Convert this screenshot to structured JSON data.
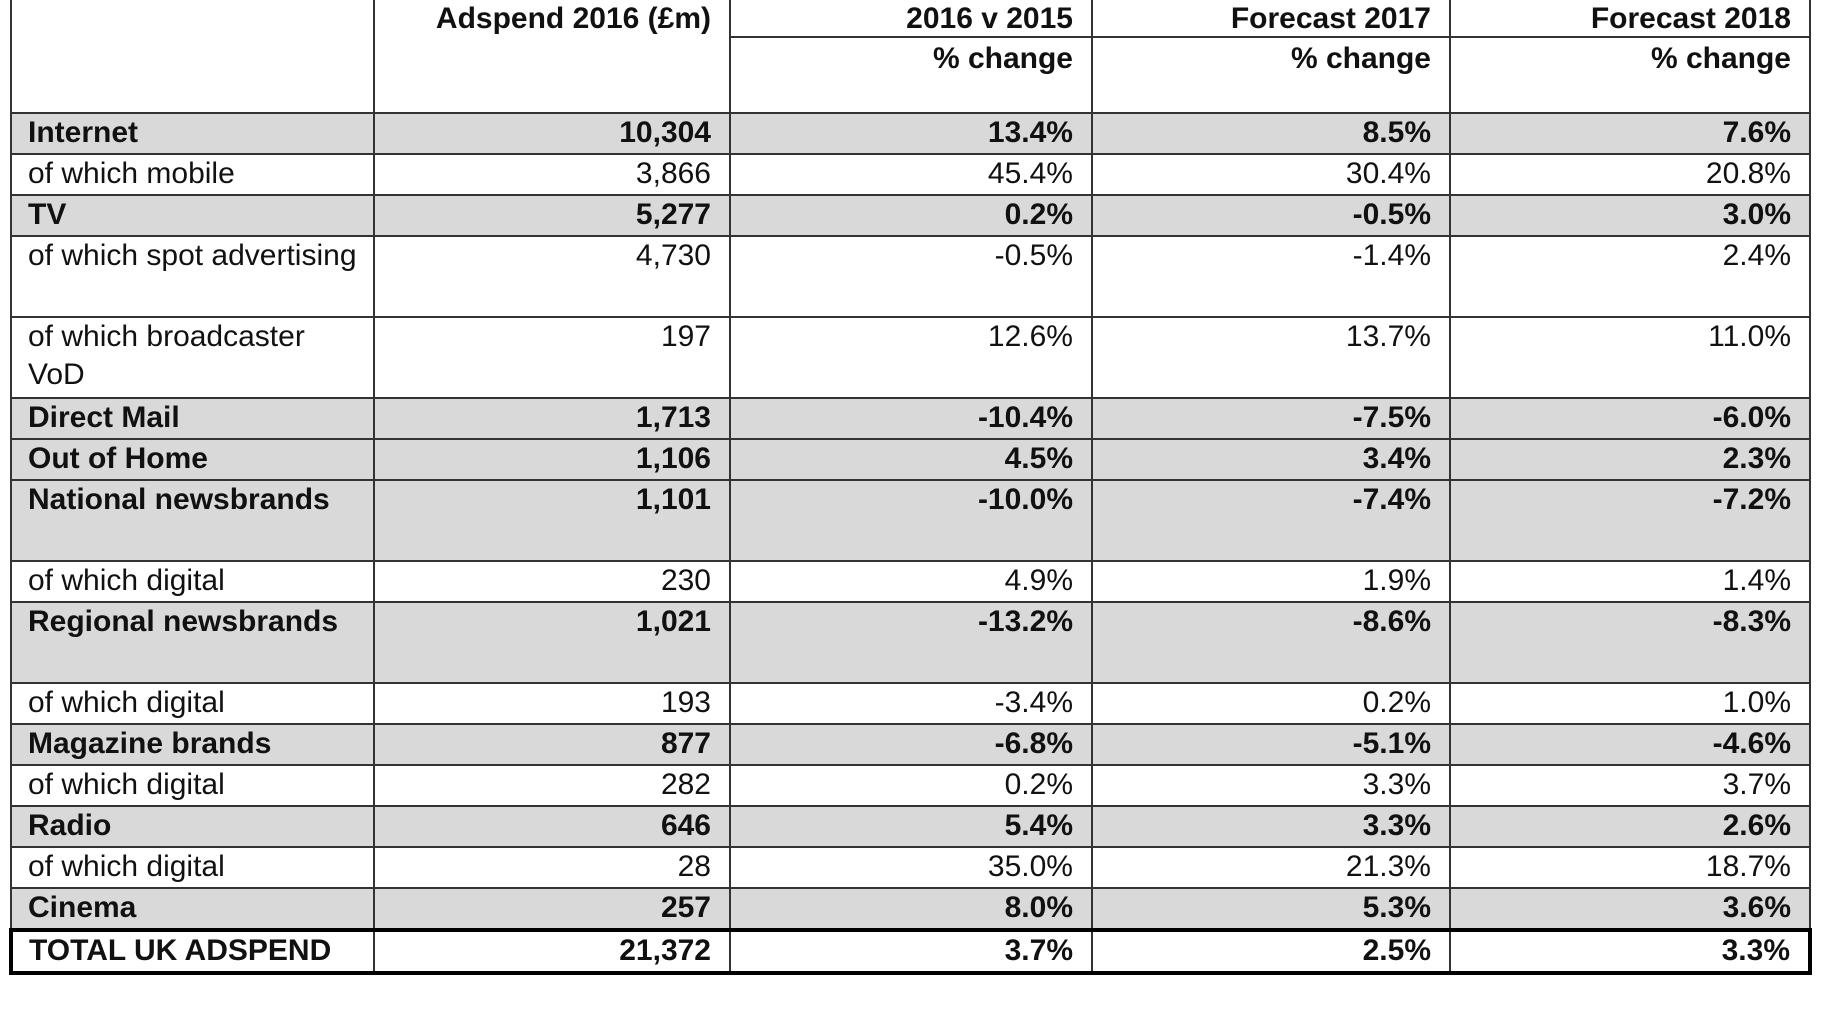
{
  "header": [
    {
      "title": "Adspend 2016 (£m)"
    },
    {
      "title": "2016 v 2015",
      "subtitle": "% change"
    },
    {
      "title": "Forecast 2017",
      "subtitle": "% change"
    },
    {
      "title": "Forecast 2018",
      "subtitle": "% change"
    }
  ],
  "rows": [
    {
      "label": "Internet",
      "style": "main",
      "cells": [
        "10,304",
        "13.4%",
        "8.5%",
        "7.6%"
      ]
    },
    {
      "label": "of which mobile",
      "style": "sub",
      "cells": [
        "3,866",
        "45.4%",
        "30.4%",
        "20.8%"
      ]
    },
    {
      "label": "TV",
      "style": "main",
      "cells": [
        "5,277",
        "0.2%",
        "-0.5%",
        "3.0%"
      ]
    },
    {
      "label": "of which spot advertising",
      "style": "sub",
      "cells": [
        "4,730",
        "-0.5%",
        "-1.4%",
        "2.4%"
      ]
    },
    {
      "label": "of which broadcaster VoD",
      "style": "sub",
      "cells": [
        "197",
        "12.6%",
        "13.7%",
        "11.0%"
      ]
    },
    {
      "label": "Direct Mail",
      "style": "main",
      "cells": [
        "1,713",
        "-10.4%",
        "-7.5%",
        "-6.0%"
      ]
    },
    {
      "label": "Out of Home",
      "style": "main",
      "cells": [
        "1,106",
        "4.5%",
        "3.4%",
        "2.3%"
      ]
    },
    {
      "label": "National newsbrands",
      "style": "main",
      "cells": [
        "1,101",
        "-10.0%",
        "-7.4%",
        "-7.2%"
      ]
    },
    {
      "label": "of which digital",
      "style": "sub",
      "cells": [
        "230",
        "4.9%",
        "1.9%",
        "1.4%"
      ]
    },
    {
      "label": "Regional newsbrands",
      "style": "main",
      "cells": [
        "1,021",
        "-13.2%",
        "-8.6%",
        "-8.3%"
      ]
    },
    {
      "label": "of which digital",
      "style": "sub",
      "cells": [
        "193",
        "-3.4%",
        "0.2%",
        "1.0%"
      ]
    },
    {
      "label": "Magazine brands",
      "style": "main",
      "cells": [
        "877",
        "-6.8%",
        "-5.1%",
        "-4.6%"
      ]
    },
    {
      "label": "of which digital",
      "style": "sub",
      "cells": [
        "282",
        "0.2%",
        "3.3%",
        "3.7%"
      ]
    },
    {
      "label": "Radio",
      "style": "main",
      "cells": [
        "646",
        "5.4%",
        "3.3%",
        "2.6%"
      ]
    },
    {
      "label": "of which digital",
      "style": "sub",
      "cells": [
        "28",
        "35.0%",
        "21.3%",
        "18.7%"
      ]
    },
    {
      "label": "Cinema",
      "style": "main",
      "cells": [
        "257",
        "8.0%",
        "5.3%",
        "3.6%"
      ]
    },
    {
      "label": "TOTAL UK ADSPEND",
      "style": "total",
      "cells": [
        "21,372",
        "3.7%",
        "2.5%",
        "3.3%"
      ]
    }
  ]
}
